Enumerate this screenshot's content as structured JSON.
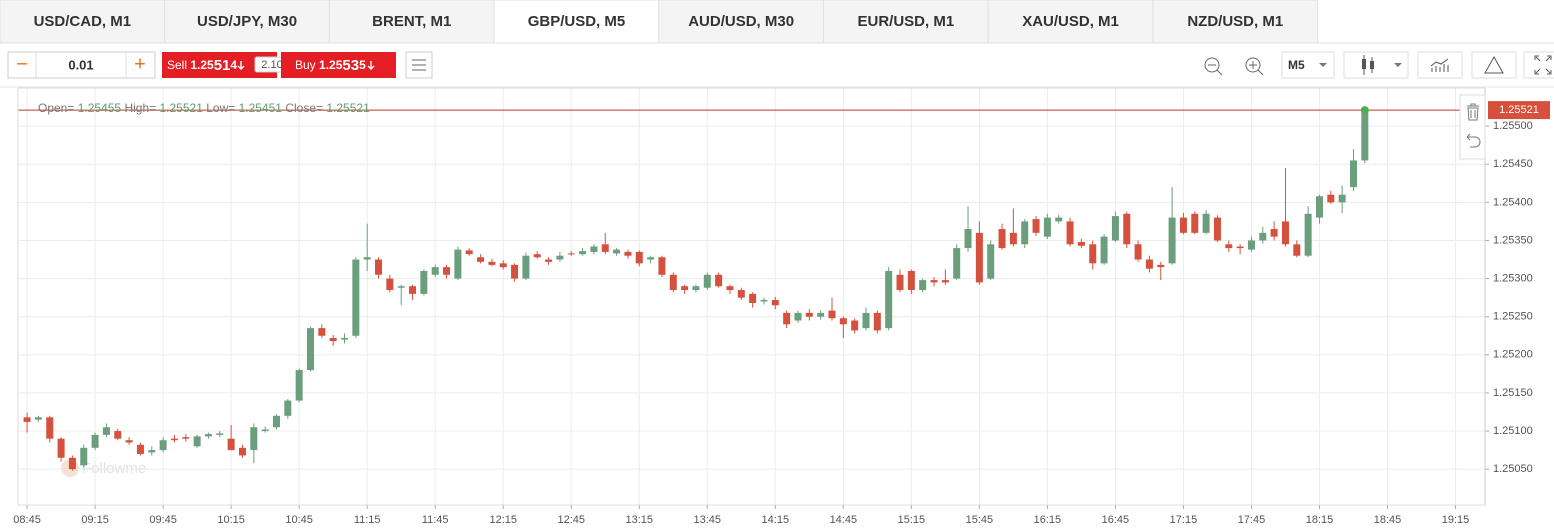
{
  "tabs": [
    {
      "label": "USD/CAD, M1"
    },
    {
      "label": "USD/JPY, M30"
    },
    {
      "label": "BRENT, M1"
    },
    {
      "label": "GBP/USD, M5",
      "active": true
    },
    {
      "label": "AUD/USD, M30"
    },
    {
      "label": "EUR/USD, M1"
    },
    {
      "label": "XAU/USD, M1"
    },
    {
      "label": "NZD/USD, M1"
    }
  ],
  "toolbar": {
    "lot_minus": "−",
    "lot": "0.01",
    "lot_plus": "+",
    "sell": {
      "label": "Sell",
      "price_prefix": "1.25",
      "price_big": "51",
      "price_suffix": "4"
    },
    "spread": "2.10",
    "buy": {
      "label": "Buy",
      "price_prefix": "1.25",
      "price_big": "53",
      "price_suffix": "5"
    },
    "timeframe": "M5"
  },
  "chart_data": {
    "type": "candlestick",
    "info": {
      "open_label": "Open=",
      "open": "1.25455",
      "high_label": "High=",
      "high": "1.25521",
      "low_label": "Low=",
      "low": "1.25451",
      "close_label": "Close=",
      "close": "1.25521"
    },
    "watermark": "Followme",
    "up_color": "#6b9e7c",
    "down_color": "#d6503e",
    "grid": true,
    "current_price": {
      "value": 1.25521,
      "label": "1.25521"
    },
    "x": [
      "08:45",
      "08:50",
      "08:55",
      "09:00",
      "09:05",
      "09:10",
      "09:15",
      "09:20",
      "09:25",
      "09:30",
      "09:35",
      "09:40",
      "09:45",
      "09:50",
      "09:55",
      "10:00",
      "10:05",
      "10:10",
      "10:15",
      "10:20",
      "10:25",
      "10:30",
      "10:35",
      "10:40",
      "10:45",
      "10:50",
      "10:55",
      "11:00",
      "11:05",
      "11:10",
      "11:15",
      "11:20",
      "11:25",
      "11:30",
      "11:35",
      "11:40",
      "11:45",
      "11:50",
      "11:55",
      "12:00",
      "12:05",
      "12:10",
      "12:15",
      "12:20",
      "12:25",
      "12:30",
      "12:35",
      "12:40",
      "12:45",
      "12:50",
      "12:55",
      "13:00",
      "13:05",
      "13:10",
      "13:15",
      "13:20",
      "13:25",
      "13:30",
      "13:35",
      "13:40",
      "13:45",
      "13:50",
      "13:55",
      "14:00",
      "14:05",
      "14:10",
      "14:15",
      "14:20",
      "14:25",
      "14:30",
      "14:35",
      "14:40",
      "14:45",
      "14:50",
      "14:55",
      "15:00",
      "15:05",
      "15:10",
      "15:15",
      "15:20",
      "15:25",
      "15:30",
      "15:35",
      "15:40",
      "15:45",
      "15:50",
      "15:55",
      "16:00",
      "16:05",
      "16:10",
      "16:15",
      "16:20",
      "16:25",
      "16:30",
      "16:35",
      "16:40",
      "16:45",
      "16:50",
      "16:55",
      "17:00",
      "17:05",
      "17:10",
      "17:15",
      "17:20",
      "17:25",
      "17:30",
      "17:35",
      "17:40",
      "17:45",
      "17:50",
      "17:55",
      "18:00",
      "18:05",
      "18:10",
      "18:15",
      "18:20",
      "18:25",
      "18:30",
      "18:35"
    ],
    "open": [
      1.25118,
      1.25115,
      1.25118,
      1.2509,
      1.25065,
      1.25055,
      1.25078,
      1.25095,
      1.251,
      1.25088,
      1.25082,
      1.25072,
      1.25075,
      1.2509,
      1.25092,
      1.2508,
      1.25093,
      1.25095,
      1.2509,
      1.25078,
      1.25075,
      1.251,
      1.25105,
      1.2512,
      1.2514,
      1.2518,
      1.25235,
      1.25222,
      1.2522,
      1.25225,
      1.25325,
      1.25325,
      1.253,
      1.25288,
      1.2529,
      1.2528,
      1.25305,
      1.25315,
      1.253,
      1.25337,
      1.25328,
      1.25322,
      1.2532,
      1.25318,
      1.253,
      1.25332,
      1.25325,
      1.25325,
      1.25333,
      1.25332,
      1.25335,
      1.25345,
      1.25333,
      1.25335,
      1.25335,
      1.25325,
      1.25328,
      1.25305,
      1.2529,
      1.25285,
      1.25288,
      1.25305,
      1.2529,
      1.25285,
      1.2528,
      1.2527,
      1.25272,
      1.25255,
      1.25245,
      1.25255,
      1.2525,
      1.25258,
      1.25248,
      1.25245,
      1.25235,
      1.25255,
      1.25235,
      1.25305,
      1.2531,
      1.25285,
      1.25298,
      1.25298,
      1.253,
      1.2534,
      1.2536,
      1.253,
      1.25365,
      1.2536,
      1.25345,
      1.25378,
      1.25355,
      1.25375,
      1.25375,
      1.25348,
      1.25345,
      1.2532,
      1.2535,
      1.25385,
      1.25345,
      1.25325,
      1.25318,
      1.2532,
      1.2538,
      1.25385,
      1.2536,
      1.2538,
      1.25345,
      1.25342,
      1.25338,
      1.2535,
      1.25365,
      1.25375,
      1.25345,
      1.2533,
      1.2538,
      1.2541,
      1.254,
      1.2542,
      1.25455
    ],
    "high": [
      1.25124,
      1.2512,
      1.2512,
      1.25092,
      1.25068,
      1.25082,
      1.25098,
      1.2511,
      1.25103,
      1.25092,
      1.25085,
      1.2508,
      1.25092,
      1.25095,
      1.25096,
      1.25095,
      1.25098,
      1.251,
      1.25108,
      1.25082,
      1.2511,
      1.25106,
      1.25122,
      1.25142,
      1.25182,
      1.25237,
      1.2524,
      1.25226,
      1.25228,
      1.25328,
      1.25372,
      1.25328,
      1.25305,
      1.25292,
      1.25292,
      1.25312,
      1.25318,
      1.25318,
      1.25342,
      1.2534,
      1.25332,
      1.25326,
      1.25324,
      1.2532,
      1.25334,
      1.25336,
      1.25328,
      1.25335,
      1.25336,
      1.2534,
      1.25345,
      1.2536,
      1.2534,
      1.25338,
      1.25337,
      1.2533,
      1.2533,
      1.25308,
      1.25292,
      1.25292,
      1.25308,
      1.25308,
      1.25292,
      1.25288,
      1.25282,
      1.25275,
      1.25276,
      1.25258,
      1.25258,
      1.2526,
      1.25258,
      1.25275,
      1.2525,
      1.25248,
      1.25262,
      1.25258,
      1.25315,
      1.25312,
      1.25312,
      1.253,
      1.25302,
      1.25312,
      1.25345,
      1.25395,
      1.25375,
      1.2535,
      1.25372,
      1.25392,
      1.25378,
      1.25382,
      1.25385,
      1.25384,
      1.2538,
      1.25352,
      1.2535,
      1.25358,
      1.25388,
      1.25388,
      1.2535,
      1.2533,
      1.25322,
      1.2542,
      1.25386,
      1.25388,
      1.2539,
      1.25383,
      1.2535,
      1.25345,
      1.25355,
      1.25368,
      1.25375,
      1.25445,
      1.2535,
      1.25395,
      1.2541,
      1.25415,
      1.25422,
      1.2547,
      1.25521
    ],
    "low": [
      1.25098,
      1.25112,
      1.25085,
      1.2506,
      1.25048,
      1.25052,
      1.25075,
      1.25092,
      1.25088,
      1.25082,
      1.25068,
      1.25068,
      1.25072,
      1.25085,
      1.25086,
      1.25078,
      1.2509,
      1.25092,
      1.25075,
      1.25065,
      1.25058,
      1.25098,
      1.25102,
      1.25116,
      1.25138,
      1.25178,
      1.25222,
      1.25212,
      1.25215,
      1.25222,
      1.2531,
      1.253,
      1.25282,
      1.25265,
      1.25272,
      1.25278,
      1.25302,
      1.253,
      1.25298,
      1.2533,
      1.2532,
      1.25316,
      1.25312,
      1.25296,
      1.25298,
      1.25326,
      1.25318,
      1.25322,
      1.2533,
      1.2533,
      1.25332,
      1.25332,
      1.2533,
      1.25326,
      1.25316,
      1.2532,
      1.25302,
      1.25282,
      1.2528,
      1.25282,
      1.25285,
      1.25288,
      1.2528,
      1.25272,
      1.25262,
      1.25266,
      1.2526,
      1.25235,
      1.25242,
      1.25245,
      1.25246,
      1.25245,
      1.25222,
      1.25228,
      1.25232,
      1.25228,
      1.25232,
      1.25282,
      1.2528,
      1.25282,
      1.2529,
      1.25292,
      1.25298,
      1.25335,
      1.25292,
      1.25298,
      1.25338,
      1.25342,
      1.2534,
      1.25356,
      1.25352,
      1.25372,
      1.25342,
      1.2534,
      1.25312,
      1.25318,
      1.25348,
      1.2534,
      1.25322,
      1.25308,
      1.25298,
      1.25318,
      1.25358,
      1.25358,
      1.25358,
      1.25348,
      1.25335,
      1.25332,
      1.25335,
      1.25346,
      1.2535,
      1.25342,
      1.25328,
      1.25328,
      1.25372,
      1.25398,
      1.25386,
      1.25415,
      1.25451
    ],
    "close": [
      1.25112,
      1.25118,
      1.2509,
      1.25065,
      1.2505,
      1.25078,
      1.25095,
      1.25105,
      1.2509,
      1.25085,
      1.2507,
      1.25075,
      1.25088,
      1.25088,
      1.2509,
      1.25093,
      1.25096,
      1.25097,
      1.25075,
      1.25068,
      1.25105,
      1.25102,
      1.2512,
      1.2514,
      1.2518,
      1.25235,
      1.25225,
      1.25218,
      1.25222,
      1.25325,
      1.25328,
      1.25305,
      1.25285,
      1.2529,
      1.2528,
      1.2531,
      1.25315,
      1.25305,
      1.25338,
      1.25332,
      1.25322,
      1.25318,
      1.25315,
      1.253,
      1.2533,
      1.25328,
      1.25322,
      1.2533,
      1.25332,
      1.25336,
      1.25342,
      1.25335,
      1.25338,
      1.2533,
      1.2532,
      1.25328,
      1.25305,
      1.25285,
      1.25285,
      1.2529,
      1.25305,
      1.2529,
      1.25285,
      1.25275,
      1.25268,
      1.25272,
      1.25265,
      1.2524,
      1.25255,
      1.2525,
      1.25255,
      1.25248,
      1.2524,
      1.25232,
      1.25255,
      1.25232,
      1.2531,
      1.25285,
      1.25285,
      1.25298,
      1.25295,
      1.25295,
      1.2534,
      1.25365,
      1.25295,
      1.25345,
      1.2534,
      1.25345,
      1.25375,
      1.2536,
      1.2538,
      1.2538,
      1.25345,
      1.25343,
      1.2532,
      1.25355,
      1.25382,
      1.25345,
      1.25325,
      1.25313,
      1.25315,
      1.2538,
      1.2536,
      1.2536,
      1.25385,
      1.2535,
      1.2534,
      1.2534,
      1.2535,
      1.2536,
      1.25355,
      1.25345,
      1.2533,
      1.25385,
      1.25408,
      1.254,
      1.2541,
      1.25455,
      1.25521
    ],
    "xlim": [
      "08:41",
      "19:28"
    ],
    "xticks": [
      "08:45",
      "09:15",
      "09:45",
      "10:15",
      "10:45",
      "11:15",
      "11:45",
      "12:15",
      "12:45",
      "13:15",
      "13:45",
      "14:15",
      "14:45",
      "15:15",
      "15:45",
      "16:15",
      "16:45",
      "17:15",
      "17:45",
      "18:15",
      "18:45",
      "19:15"
    ],
    "ylim": [
      1.25003,
      1.2555
    ],
    "yticks": [
      {
        "value": 1.2505,
        "label": "1.25050"
      },
      {
        "value": 1.251,
        "label": "1.25100"
      },
      {
        "value": 1.2515,
        "label": "1.25150"
      },
      {
        "value": 1.252,
        "label": "1.25200"
      },
      {
        "value": 1.2525,
        "label": "1.25250"
      },
      {
        "value": 1.253,
        "label": "1.25300"
      },
      {
        "value": 1.2535,
        "label": "1.25350"
      },
      {
        "value": 1.254,
        "label": "1.25400"
      },
      {
        "value": 1.2545,
        "label": "1.25450"
      },
      {
        "value": 1.255,
        "label": "1.25500"
      }
    ]
  }
}
